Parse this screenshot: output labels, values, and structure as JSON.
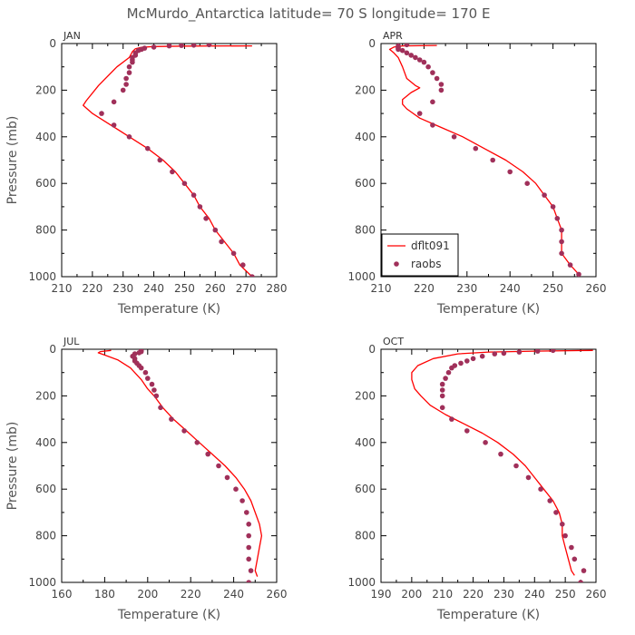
{
  "figure_title": "McMurdo_Antarctica  latitude= 70 S longitude= 170 E",
  "colors": {
    "model": "#ff0000",
    "obs": "#a0305a",
    "axes": "#000000"
  },
  "legend": {
    "panel": "APR",
    "placement": "bottom-left",
    "items": [
      "dflt091",
      "raobs"
    ]
  },
  "chart_data": [
    {
      "type": "line",
      "title": "JAN",
      "xlabel": "Temperature (K)",
      "ylabel": "Pressure (mb)",
      "xlim": [
        210,
        280
      ],
      "ylim": [
        1000,
        0
      ],
      "x_ticks": [
        210,
        220,
        230,
        240,
        250,
        260,
        270,
        280
      ],
      "y_ticks": [
        0,
        200,
        400,
        600,
        800,
        1000
      ],
      "series": [
        {
          "name": "dflt091",
          "kind": "line",
          "points": [
            [
              272,
              10
            ],
            [
              250,
              11
            ],
            [
              240,
              13
            ],
            [
              236,
              16
            ],
            [
              234,
              22
            ],
            [
              233,
              35
            ],
            [
              232,
              60
            ],
            [
              228,
              100
            ],
            [
              222,
              180
            ],
            [
              218,
              245
            ],
            [
              217,
              265
            ],
            [
              220,
              300
            ],
            [
              226,
              350
            ],
            [
              232,
              400
            ],
            [
              238,
              450
            ],
            [
              243,
              500
            ],
            [
              247,
              550
            ],
            [
              250,
              600
            ],
            [
              253,
              650
            ],
            [
              255,
              700
            ],
            [
              258,
              750
            ],
            [
              260,
              800
            ],
            [
              263,
              850
            ],
            [
              266,
              900
            ],
            [
              268,
              950
            ],
            [
              272,
              1000
            ]
          ]
        },
        {
          "name": "raobs",
          "kind": "scatter",
          "points": [
            [
              258,
              5
            ],
            [
              253,
              7
            ],
            [
              249,
              8
            ],
            [
              245,
              10
            ],
            [
              240,
              15
            ],
            [
              237,
              20
            ],
            [
              236,
              25
            ],
            [
              235,
              30
            ],
            [
              234,
              40
            ],
            [
              234,
              50
            ],
            [
              233,
              60
            ],
            [
              233,
              70
            ],
            [
              233,
              80
            ],
            [
              232,
              100
            ],
            [
              232,
              125
            ],
            [
              231,
              150
            ],
            [
              231,
              175
            ],
            [
              230,
              200
            ],
            [
              227,
              250
            ],
            [
              223,
              300
            ],
            [
              227,
              350
            ],
            [
              232,
              400
            ],
            [
              238,
              450
            ],
            [
              242,
              500
            ],
            [
              246,
              550
            ],
            [
              250,
              600
            ],
            [
              253,
              650
            ],
            [
              255,
              700
            ],
            [
              257,
              750
            ],
            [
              260,
              800
            ],
            [
              262,
              850
            ],
            [
              266,
              900
            ],
            [
              269,
              950
            ],
            [
              272,
              1000
            ]
          ]
        }
      ]
    },
    {
      "type": "line",
      "title": "APR",
      "xlabel": "Temperature (K)",
      "ylabel": "",
      "xlim": [
        210,
        260
      ],
      "ylim": [
        1000,
        0
      ],
      "x_ticks": [
        210,
        220,
        230,
        240,
        250,
        260
      ],
      "y_ticks": [
        0,
        200,
        400,
        600,
        800,
        1000
      ],
      "series": [
        {
          "name": "dflt091",
          "kind": "line",
          "points": [
            [
              223,
              8
            ],
            [
              215,
              10
            ],
            [
              213,
              15
            ],
            [
              212,
              25
            ],
            [
              213,
              40
            ],
            [
              214,
              60
            ],
            [
              215,
              100
            ],
            [
              216,
              150
            ],
            [
              218,
              180
            ],
            [
              219,
              190
            ],
            [
              217,
              210
            ],
            [
              215,
              240
            ],
            [
              215,
              260
            ],
            [
              216,
              280
            ],
            [
              219,
              320
            ],
            [
              224,
              360
            ],
            [
              229,
              400
            ],
            [
              234,
              450
            ],
            [
              239,
              500
            ],
            [
              243,
              550
            ],
            [
              246,
              600
            ],
            [
              248,
              650
            ],
            [
              250,
              700
            ],
            [
              251,
              750
            ],
            [
              252,
              800
            ],
            [
              252,
              850
            ],
            [
              252,
              900
            ],
            [
              254,
              950
            ],
            [
              256,
              990
            ]
          ]
        },
        {
          "name": "raobs",
          "kind": "scatter",
          "points": [
            [
              216,
              5
            ],
            [
              214,
              10
            ],
            [
              214,
              15
            ],
            [
              214,
              20
            ],
            [
              214,
              25
            ],
            [
              215,
              30
            ],
            [
              216,
              40
            ],
            [
              217,
              50
            ],
            [
              218,
              60
            ],
            [
              219,
              70
            ],
            [
              220,
              80
            ],
            [
              221,
              100
            ],
            [
              222,
              125
            ],
            [
              223,
              150
            ],
            [
              224,
              175
            ],
            [
              224,
              200
            ],
            [
              222,
              250
            ],
            [
              219,
              300
            ],
            [
              222,
              350
            ],
            [
              227,
              400
            ],
            [
              232,
              450
            ],
            [
              236,
              500
            ],
            [
              240,
              550
            ],
            [
              244,
              600
            ],
            [
              248,
              650
            ],
            [
              250,
              700
            ],
            [
              251,
              750
            ],
            [
              252,
              800
            ],
            [
              252,
              850
            ],
            [
              252,
              900
            ],
            [
              254,
              950
            ],
            [
              256,
              990
            ]
          ]
        }
      ]
    },
    {
      "type": "line",
      "title": "JUL",
      "xlabel": "Temperature (K)",
      "ylabel": "Pressure (mb)",
      "xlim": [
        160,
        260
      ],
      "ylim": [
        1000,
        0
      ],
      "x_ticks": [
        160,
        180,
        200,
        220,
        240,
        260
      ],
      "y_ticks": [
        0,
        200,
        400,
        600,
        800,
        1000
      ],
      "series": [
        {
          "name": "dflt091",
          "kind": "line",
          "points": [
            [
              183,
              5
            ],
            [
              178,
              10
            ],
            [
              177,
              15
            ],
            [
              180,
              25
            ],
            [
              186,
              45
            ],
            [
              192,
              80
            ],
            [
              197,
              130
            ],
            [
              200,
              170
            ],
            [
              203,
              200
            ],
            [
              207,
              250
            ],
            [
              212,
              300
            ],
            [
              218,
              350
            ],
            [
              224,
              400
            ],
            [
              230,
              450
            ],
            [
              236,
              500
            ],
            [
              241,
              550
            ],
            [
              245,
              600
            ],
            [
              248,
              650
            ],
            [
              250,
              700
            ],
            [
              252,
              750
            ],
            [
              253,
              800
            ],
            [
              252,
              850
            ],
            [
              251,
              900
            ],
            [
              250,
              950
            ],
            [
              251,
              975
            ]
          ]
        },
        {
          "name": "raobs",
          "kind": "scatter",
          "points": [
            [
              197,
              5
            ],
            [
              197,
              10
            ],
            [
              196,
              15
            ],
            [
              194,
              20
            ],
            [
              193,
              30
            ],
            [
              194,
              40
            ],
            [
              194,
              50
            ],
            [
              195,
              60
            ],
            [
              196,
              70
            ],
            [
              197,
              80
            ],
            [
              199,
              100
            ],
            [
              200,
              125
            ],
            [
              202,
              150
            ],
            [
              203,
              175
            ],
            [
              204,
              200
            ],
            [
              206,
              250
            ],
            [
              211,
              300
            ],
            [
              217,
              350
            ],
            [
              223,
              400
            ],
            [
              228,
              450
            ],
            [
              233,
              500
            ],
            [
              237,
              550
            ],
            [
              241,
              600
            ],
            [
              244,
              650
            ],
            [
              246,
              700
            ],
            [
              247,
              750
            ],
            [
              247,
              800
            ],
            [
              247,
              850
            ],
            [
              247,
              900
            ],
            [
              248,
              950
            ],
            [
              247,
              1000
            ]
          ]
        }
      ]
    },
    {
      "type": "line",
      "title": "OCT",
      "xlabel": "Temperature (K)",
      "ylabel": "",
      "xlim": [
        190,
        260
      ],
      "ylim": [
        1000,
        0
      ],
      "x_ticks": [
        190,
        200,
        210,
        220,
        230,
        240,
        250,
        260
      ],
      "y_ticks": [
        0,
        200,
        400,
        600,
        800,
        1000
      ],
      "series": [
        {
          "name": "dflt091",
          "kind": "line",
          "points": [
            [
              259,
              5
            ],
            [
              240,
              8
            ],
            [
              225,
              12
            ],
            [
              215,
              20
            ],
            [
              207,
              40
            ],
            [
              202,
              70
            ],
            [
              200,
              100
            ],
            [
              200,
              130
            ],
            [
              201,
              170
            ],
            [
              203,
              200
            ],
            [
              206,
              240
            ],
            [
              211,
              280
            ],
            [
              217,
              320
            ],
            [
              223,
              360
            ],
            [
              228,
              400
            ],
            [
              233,
              450
            ],
            [
              237,
              500
            ],
            [
              240,
              550
            ],
            [
              243,
              600
            ],
            [
              246,
              650
            ],
            [
              248,
              700
            ],
            [
              249,
              750
            ],
            [
              249,
              800
            ],
            [
              250,
              850
            ],
            [
              251,
              900
            ],
            [
              252,
              950
            ],
            [
              253,
              970
            ]
          ]
        },
        {
          "name": "raobs",
          "kind": "scatter",
          "points": [
            [
              246,
              5
            ],
            [
              241,
              8
            ],
            [
              235,
              12
            ],
            [
              230,
              17
            ],
            [
              227,
              20
            ],
            [
              223,
              30
            ],
            [
              220,
              40
            ],
            [
              218,
              50
            ],
            [
              216,
              60
            ],
            [
              214,
              70
            ],
            [
              213,
              80
            ],
            [
              212,
              100
            ],
            [
              211,
              125
            ],
            [
              210,
              150
            ],
            [
              210,
              175
            ],
            [
              210,
              200
            ],
            [
              210,
              250
            ],
            [
              213,
              300
            ],
            [
              218,
              350
            ],
            [
              224,
              400
            ],
            [
              229,
              450
            ],
            [
              234,
              500
            ],
            [
              238,
              550
            ],
            [
              242,
              600
            ],
            [
              245,
              650
            ],
            [
              247,
              700
            ],
            [
              249,
              750
            ],
            [
              250,
              800
            ],
            [
              252,
              850
            ],
            [
              253,
              900
            ],
            [
              256,
              950
            ],
            [
              255,
              1000
            ]
          ]
        }
      ]
    }
  ]
}
